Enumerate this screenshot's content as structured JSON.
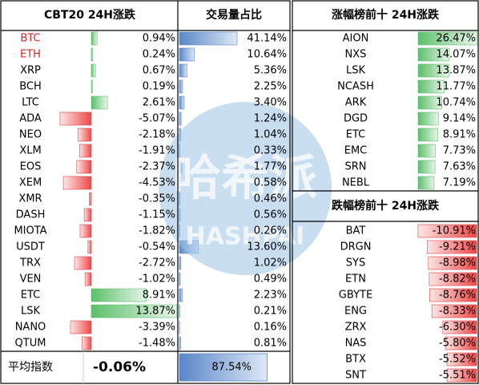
{
  "cbt20": {
    "title": "CBT20 24H涨跌",
    "volume_title": "交易量占比",
    "rows": [
      {
        "name": "BTC",
        "color": "#e02020",
        "change": {
          "value": 0.94,
          "label": "0.94%"
        },
        "volume": {
          "value": 41.14,
          "label": "41.14%"
        }
      },
      {
        "name": "ETH",
        "color": "#e02020",
        "change": {
          "value": 0.24,
          "label": "0.24%"
        },
        "volume": {
          "value": 10.64,
          "label": "10.64%"
        }
      },
      {
        "name": "XRP",
        "change": {
          "value": 0.67,
          "label": "0.67%"
        },
        "volume": {
          "value": 5.36,
          "label": "5.36%"
        }
      },
      {
        "name": "BCH",
        "change": {
          "value": 0.19,
          "label": "0.19%"
        },
        "volume": {
          "value": 2.25,
          "label": "2.25%"
        }
      },
      {
        "name": "LTC",
        "change": {
          "value": 2.61,
          "label": "2.61%"
        },
        "volume": {
          "value": 3.4,
          "label": "3.40%"
        }
      },
      {
        "name": "ADA",
        "change": {
          "value": -5.07,
          "label": "-5.07%"
        },
        "volume": {
          "value": 1.24,
          "label": "1.24%"
        }
      },
      {
        "name": "NEO",
        "change": {
          "value": -2.18,
          "label": "-2.18%"
        },
        "volume": {
          "value": 1.04,
          "label": "1.04%"
        }
      },
      {
        "name": "XLM",
        "change": {
          "value": -1.91,
          "label": "-1.91%"
        },
        "volume": {
          "value": 0.33,
          "label": "0.33%"
        }
      },
      {
        "name": "EOS",
        "change": {
          "value": -2.37,
          "label": "-2.37%"
        },
        "volume": {
          "value": 1.77,
          "label": "1.77%"
        }
      },
      {
        "name": "XEM",
        "change": {
          "value": -4.53,
          "label": "-4.53%"
        },
        "volume": {
          "value": 0.58,
          "label": "0.58%"
        }
      },
      {
        "name": "XMR",
        "change": {
          "value": -0.35,
          "label": "-0.35%"
        },
        "volume": {
          "value": 0.46,
          "label": "0.46%"
        }
      },
      {
        "name": "DASH",
        "change": {
          "value": -1.15,
          "label": "-1.15%"
        },
        "volume": {
          "value": 0.56,
          "label": "0.56%"
        }
      },
      {
        "name": "MIOTA",
        "change": {
          "value": -1.82,
          "label": "-1.82%"
        },
        "volume": {
          "value": 0.26,
          "label": "0.26%"
        }
      },
      {
        "name": "USDT",
        "change": {
          "value": -0.54,
          "label": "-0.54%"
        },
        "volume": {
          "value": 13.6,
          "label": "13.60%"
        }
      },
      {
        "name": "TRX",
        "change": {
          "value": -2.72,
          "label": "-2.72%"
        },
        "volume": {
          "value": 1.02,
          "label": "1.02%"
        }
      },
      {
        "name": "VEN",
        "change": {
          "value": -1.02,
          "label": "-1.02%"
        },
        "volume": {
          "value": 0.49,
          "label": "0.49%"
        }
      },
      {
        "name": "ETC",
        "change": {
          "value": 8.91,
          "label": "8.91%"
        },
        "volume": {
          "value": 2.23,
          "label": "2.23%"
        }
      },
      {
        "name": "LSK",
        "change": {
          "value": 13.87,
          "label": "13.87%"
        },
        "volume": {
          "value": 0.21,
          "label": "0.21%"
        }
      },
      {
        "name": "NANO",
        "change": {
          "value": -3.39,
          "label": "-3.39%"
        },
        "volume": {
          "value": 0.16,
          "label": "0.16%"
        }
      },
      {
        "name": "QTUM",
        "change": {
          "value": -1.48,
          "label": "-1.48%"
        },
        "volume": {
          "value": 0.81,
          "label": "0.81%"
        }
      }
    ],
    "footer": {
      "label": "平均指数",
      "change": {
        "value": -0.06,
        "label": "-0.06%"
      },
      "volume": {
        "value": 87.54,
        "label": "87.54%"
      }
    }
  },
  "gainers": {
    "title": "涨幅榜前十 24H涨跌",
    "rows": [
      {
        "name": "AION",
        "change": {
          "value": 26.47,
          "label": "26.47%"
        }
      },
      {
        "name": "NXS",
        "change": {
          "value": 14.07,
          "label": "14.07%"
        }
      },
      {
        "name": "LSK",
        "change": {
          "value": 13.87,
          "label": "13.87%"
        }
      },
      {
        "name": "NCASH",
        "change": {
          "value": 11.77,
          "label": "11.77%"
        }
      },
      {
        "name": "ARK",
        "change": {
          "value": 10.74,
          "label": "10.74%"
        }
      },
      {
        "name": "DGD",
        "change": {
          "value": 9.14,
          "label": "9.14%"
        }
      },
      {
        "name": "ETC",
        "change": {
          "value": 8.91,
          "label": "8.91%"
        }
      },
      {
        "name": "EMC",
        "change": {
          "value": 7.73,
          "label": "7.73%"
        }
      },
      {
        "name": "SRN",
        "change": {
          "value": 7.63,
          "label": "7.63%"
        }
      },
      {
        "name": "NEBL",
        "change": {
          "value": 7.19,
          "label": "7.19%"
        }
      }
    ]
  },
  "losers": {
    "title": "跌幅榜前十 24H涨跌",
    "rows": [
      {
        "name": "BAT",
        "change": {
          "value": -10.91,
          "label": "-10.91%"
        }
      },
      {
        "name": "DRGN",
        "change": {
          "value": -9.21,
          "label": "-9.21%"
        }
      },
      {
        "name": "SYS",
        "change": {
          "value": -8.98,
          "label": "-8.98%"
        }
      },
      {
        "name": "ETN",
        "change": {
          "value": -8.82,
          "label": "-8.82%"
        }
      },
      {
        "name": "GBYTE",
        "change": {
          "value": -8.76,
          "label": "-8.76%"
        }
      },
      {
        "name": "ENG",
        "change": {
          "value": -8.33,
          "label": "-8.33%"
        }
      },
      {
        "name": "ZRX",
        "change": {
          "value": -6.3,
          "label": "-6.30%"
        }
      },
      {
        "name": "NAS",
        "change": {
          "value": -5.8,
          "label": "-5.80%"
        }
      },
      {
        "name": "BTX",
        "change": {
          "value": -5.52,
          "label": "-5.52%"
        }
      },
      {
        "name": "SNT",
        "change": {
          "value": -5.51,
          "label": "-5.51%"
        }
      }
    ]
  },
  "watermark": {
    "text": "哈希派",
    "subtext": "HASHPAI"
  }
}
